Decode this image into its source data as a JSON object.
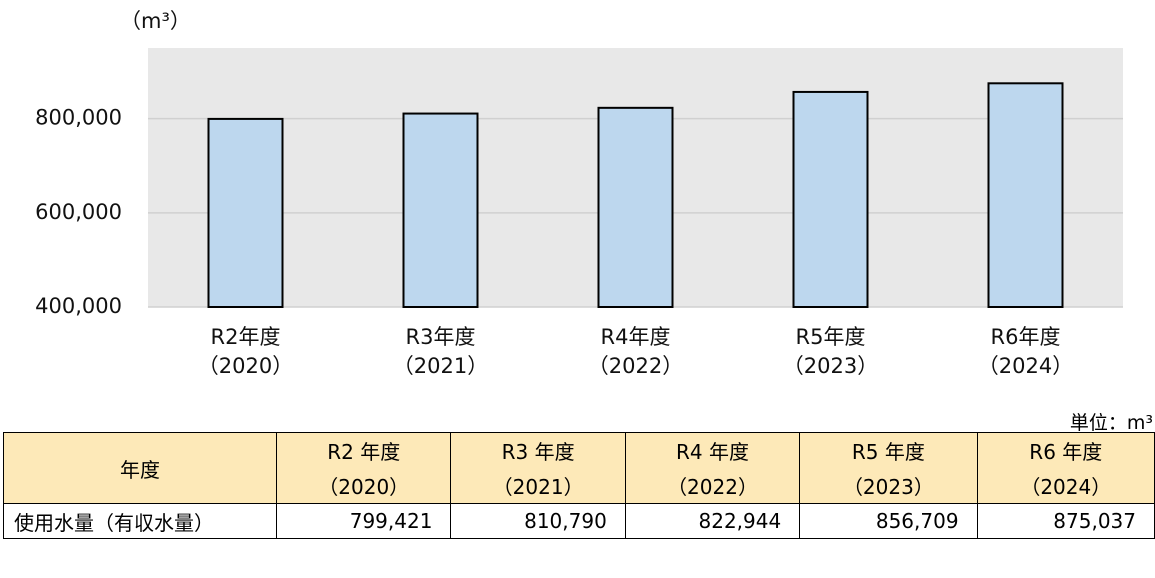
{
  "chart_data": {
    "type": "bar",
    "unit_label": "（m³）",
    "categories": [
      [
        "R2年度",
        "（2020）"
      ],
      [
        "R3年度",
        "（2021）"
      ],
      [
        "R4年度",
        "（2022）"
      ],
      [
        "R5年度",
        "（2023）"
      ],
      [
        "R6年度",
        "（2024）"
      ]
    ],
    "values": [
      799421,
      810790,
      822944,
      856709,
      875037
    ],
    "color": "#bdd7ee",
    "ylim": [
      400000,
      950000
    ],
    "yticks": [
      {
        "value": 400000,
        "label": "400,000"
      },
      {
        "value": 600000,
        "label": "600,000"
      },
      {
        "value": 800000,
        "label": "800,000"
      }
    ],
    "grid": true
  },
  "table": {
    "unit": "単位：m³",
    "header": [
      "年度",
      [
        "R2 年度",
        "（2020）"
      ],
      [
        "R3 年度",
        "（2021）"
      ],
      [
        "R4 年度",
        "（2022）"
      ],
      [
        "R5 年度",
        "（2023）"
      ],
      [
        "R6 年度",
        "（2024）"
      ]
    ],
    "rows": [
      [
        "使用水量（有収水量）",
        "799,421",
        "810,790",
        "822,944",
        "856,709",
        "875,037"
      ]
    ]
  }
}
